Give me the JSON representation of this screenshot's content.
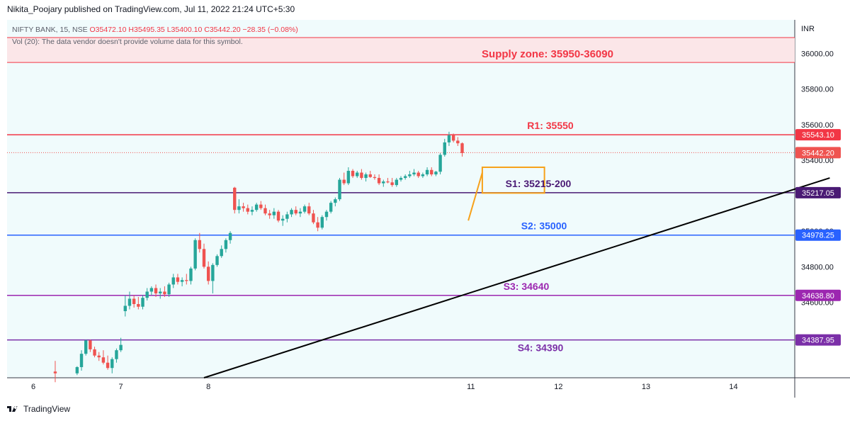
{
  "header": {
    "publisher": "Nikita_Poojary published on TradingView.com, Jul 11, 2022 21:24 UTC+5:30"
  },
  "symbol_info": {
    "line1_prefix": "NIFTY BANK, 15, NSE",
    "ohlc": "O35472.10  H35495.35  L35400.10  C35442.20  −28.35 (−0.08%)",
    "line2": "Vol (20): The data vendor doesn't provide volume data for this symbol."
  },
  "footer": {
    "brand": "TradingView"
  },
  "colors": {
    "background": "#f0fbfc",
    "up": "#26a69a",
    "down": "#ef5350",
    "supply_fill": "#fbe6e8",
    "red_line": "#f23645",
    "purple_dark": "#4a1a74",
    "blue": "#2962ff",
    "purple": "#9c27b0",
    "orange": "#f7a11a",
    "trend": "#000000"
  },
  "chart_data": {
    "type": "candlestick",
    "currency_label": "INR",
    "y_ticks": [
      "36000.00",
      "35800.00",
      "35600.00",
      "35400.00",
      "35000.00",
      "34800.00",
      "34600.00"
    ],
    "x_ticks": [
      "6",
      "7",
      "8",
      "11",
      "12",
      "13",
      "14"
    ],
    "ylim": [
      34175,
      36190
    ],
    "zones": [
      {
        "name": "supply",
        "label": "Supply zone: 35950-36090",
        "low": 35950,
        "high": 36090
      }
    ],
    "levels": [
      {
        "label": "R1: 35550",
        "value": 35543.1,
        "price_tag": "35543.10",
        "color": "#f23645"
      },
      {
        "label": "S1: 35215-200",
        "value": 35217.05,
        "price_tag": "35217.05",
        "color": "#4a1a74"
      },
      {
        "label": "S2: 35000",
        "value": 34978.25,
        "price_tag": "34978.25",
        "color": "#2962ff"
      },
      {
        "label": "S3: 34640",
        "value": 34638.8,
        "price_tag": "34638.80",
        "color": "#9c27b0"
      },
      {
        "label": "S4: 34390",
        "value": 34387.95,
        "price_tag": "34387.95",
        "color": "#7b2fa8"
      }
    ],
    "last_price": {
      "value": 35442.2,
      "tag": "35442.20"
    },
    "trendline": [
      [
        7.95,
        34175
      ],
      [
        15.1,
        35300
      ]
    ],
    "flagpole": [
      [
        10.97,
        35060
      ],
      [
        11.13,
        35330
      ]
    ],
    "consolidation_box": {
      "x0": 11.13,
      "x1": 11.84,
      "low": 35215,
      "high": 35360
    },
    "candles": [
      [
        6.25,
        34210,
        34270,
        34150,
        34200
      ],
      [
        6.5,
        34200,
        34240,
        34190,
        34235
      ],
      [
        6.55,
        34235,
        34330,
        34215,
        34310
      ],
      [
        6.6,
        34310,
        34390,
        34300,
        34385
      ],
      [
        6.65,
        34385,
        34390,
        34320,
        34335
      ],
      [
        6.7,
        34335,
        34350,
        34290,
        34300
      ],
      [
        6.75,
        34300,
        34320,
        34270,
        34290
      ],
      [
        6.8,
        34290,
        34330,
        34250,
        34260
      ],
      [
        6.85,
        34260,
        34300,
        34220,
        34230
      ],
      [
        6.9,
        34230,
        34290,
        34200,
        34280
      ],
      [
        6.95,
        34280,
        34340,
        34260,
        34330
      ],
      [
        7.0,
        34330,
        34400,
        34320,
        34360
      ],
      [
        7.05,
        34550,
        34640,
        34520,
        34580
      ],
      [
        7.1,
        34580,
        34660,
        34560,
        34620
      ],
      [
        7.15,
        34620,
        34640,
        34570,
        34590
      ],
      [
        7.2,
        34590,
        34630,
        34560,
        34575
      ],
      [
        7.25,
        34575,
        34640,
        34560,
        34625
      ],
      [
        7.3,
        34625,
        34680,
        34610,
        34660
      ],
      [
        7.35,
        34660,
        34690,
        34640,
        34680
      ],
      [
        7.4,
        34680,
        34700,
        34630,
        34650
      ],
      [
        7.45,
        34650,
        34680,
        34620,
        34660
      ],
      [
        7.5,
        34660,
        34690,
        34630,
        34645
      ],
      [
        7.55,
        34645,
        34710,
        34630,
        34700
      ],
      [
        7.6,
        34700,
        34760,
        34680,
        34740
      ],
      [
        7.65,
        34740,
        34760,
        34700,
        34715
      ],
      [
        7.7,
        34715,
        34740,
        34690,
        34725
      ],
      [
        7.75,
        34725,
        34760,
        34700,
        34720
      ],
      [
        7.8,
        34720,
        34800,
        34700,
        34790
      ],
      [
        7.85,
        34790,
        34960,
        34780,
        34950
      ],
      [
        7.9,
        34950,
        34990,
        34880,
        34900
      ],
      [
        7.95,
        34900,
        34930,
        34790,
        34800
      ],
      [
        8.0,
        34800,
        34830,
        34700,
        34720
      ],
      [
        8.05,
        34720,
        34820,
        34650,
        34810
      ],
      [
        8.1,
        34810,
        34870,
        34800,
        34860
      ],
      [
        8.15,
        34860,
        34920,
        34850,
        34900
      ],
      [
        8.2,
        34900,
        34960,
        34880,
        34950
      ],
      [
        8.25,
        34950,
        35000,
        34930,
        34990
      ],
      [
        8.3,
        35245,
        35250,
        35100,
        35120
      ],
      [
        8.35,
        35120,
        35180,
        35100,
        35140
      ],
      [
        8.4,
        35140,
        35160,
        35110,
        35130
      ],
      [
        8.45,
        35130,
        35150,
        35095,
        35110
      ],
      [
        8.5,
        35110,
        35140,
        35090,
        35120
      ],
      [
        8.55,
        35120,
        35160,
        35110,
        35150
      ],
      [
        8.6,
        35150,
        35170,
        35120,
        35130
      ],
      [
        8.65,
        35130,
        35150,
        35090,
        35100
      ],
      [
        8.7,
        35100,
        35120,
        35070,
        35090
      ],
      [
        8.75,
        35090,
        35130,
        35070,
        35110
      ],
      [
        8.8,
        35110,
        35120,
        35050,
        35060
      ],
      [
        8.85,
        35060,
        35090,
        35030,
        35070
      ],
      [
        8.9,
        35070,
        35110,
        35050,
        35095
      ],
      [
        8.95,
        35095,
        35130,
        35080,
        35120
      ],
      [
        9.0,
        35120,
        35140,
        35090,
        35100
      ],
      [
        9.05,
        35100,
        35130,
        35080,
        35110
      ],
      [
        9.1,
        35110,
        35150,
        35100,
        35140
      ],
      [
        9.15,
        35140,
        35160,
        35090,
        35100
      ],
      [
        9.2,
        35100,
        35120,
        35040,
        35050
      ],
      [
        9.25,
        35050,
        35080,
        35000,
        35020
      ],
      [
        9.3,
        35020,
        35090,
        35010,
        35080
      ],
      [
        9.35,
        35080,
        35120,
        35060,
        35110
      ],
      [
        9.4,
        35110,
        35170,
        35100,
        35160
      ],
      [
        9.45,
        35160,
        35190,
        35140,
        35180
      ],
      [
        9.5,
        35180,
        35300,
        35170,
        35290
      ],
      [
        9.55,
        35290,
        35330,
        35260,
        35270
      ],
      [
        9.6,
        35270,
        35360,
        35260,
        35340
      ],
      [
        9.65,
        35340,
        35350,
        35300,
        35310
      ],
      [
        9.7,
        35310,
        35340,
        35300,
        35330
      ],
      [
        9.75,
        35330,
        35350,
        35290,
        35300
      ],
      [
        9.8,
        35300,
        35330,
        35280,
        35320
      ],
      [
        9.85,
        35320,
        35340,
        35300,
        35305
      ],
      [
        9.9,
        35305,
        35320,
        35290,
        35300
      ],
      [
        9.95,
        35300,
        35320,
        35260,
        35270
      ],
      [
        10.0,
        35270,
        35290,
        35250,
        35280
      ],
      [
        10.05,
        35280,
        35300,
        35270,
        35275
      ],
      [
        10.1,
        35275,
        35300,
        35250,
        35260
      ],
      [
        10.15,
        35260,
        35300,
        35250,
        35290
      ],
      [
        10.2,
        35290,
        35310,
        35280,
        35300
      ],
      [
        10.25,
        35300,
        35320,
        35290,
        35310
      ],
      [
        10.3,
        35310,
        35340,
        35300,
        35320
      ],
      [
        10.35,
        35320,
        35350,
        35310,
        35330
      ],
      [
        10.4,
        35330,
        35340,
        35300,
        35310
      ],
      [
        10.45,
        35310,
        35330,
        35300,
        35320
      ],
      [
        10.5,
        35320,
        35360,
        35310,
        35345
      ],
      [
        10.55,
        35345,
        35360,
        35310,
        35320
      ],
      [
        10.6,
        35320,
        35340,
        35310,
        35335
      ],
      [
        10.65,
        35335,
        35440,
        35320,
        35430
      ],
      [
        10.7,
        35430,
        35520,
        35420,
        35500
      ],
      [
        10.75,
        35500,
        35560,
        35480,
        35540
      ],
      [
        10.8,
        35540,
        35550,
        35500,
        35510
      ],
      [
        10.85,
        35510,
        35530,
        35480,
        35495
      ],
      [
        10.9,
        35495,
        35500,
        35420,
        35440
      ]
    ]
  }
}
